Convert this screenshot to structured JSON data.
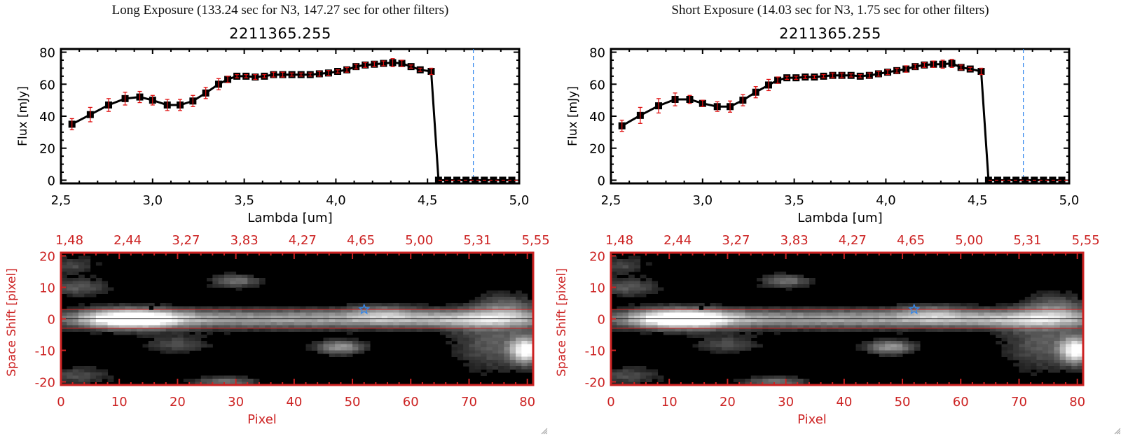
{
  "panels": [
    {
      "exposure_title": "Long Exposure (133.24 sec for N3, 147.27 sec for other filters)",
      "object_id": "2211365.255"
    },
    {
      "exposure_title": "Short Exposure (14.03 sec for N3, 1.75 sec for other filters)",
      "object_id": "2211365.255"
    }
  ],
  "colors": {
    "axis_black": "#000000",
    "error_bar_red": "#e01010",
    "image_axis_red": "#cc2222",
    "marker_line_blue": "#3388ee",
    "star_blue": "#3388ee"
  },
  "chart_data": [
    {
      "type": "line",
      "title": "2211365.255",
      "subtitle": "Long Exposure (133.24 sec for N3, 147.27 sec for other filters)",
      "xlabel": "Lambda [um]",
      "ylabel": "Flux [mJy]",
      "xlim": [
        2.5,
        5.0
      ],
      "ylim": [
        -2,
        82
      ],
      "xticks": [
        2.5,
        3.0,
        3.5,
        4.0,
        4.5,
        5.0
      ],
      "xtick_labels": [
        "2,5",
        "3,0",
        "3,5",
        "4,0",
        "4,5",
        "5,0"
      ],
      "yticks": [
        0,
        20,
        40,
        60,
        80
      ],
      "ytick_labels": [
        "0",
        "20",
        "40",
        "60",
        "80"
      ],
      "vline_x": 4.75,
      "grid": false,
      "series": [
        {
          "name": "flux",
          "x": [
            2.56,
            2.66,
            2.76,
            2.85,
            2.93,
            3.0,
            3.08,
            3.15,
            3.22,
            3.29,
            3.36,
            3.41,
            3.46,
            3.51,
            3.56,
            3.61,
            3.66,
            3.71,
            3.76,
            3.81,
            3.86,
            3.91,
            3.96,
            4.01,
            4.06,
            4.11,
            4.16,
            4.21,
            4.26,
            4.31,
            4.36,
            4.41,
            4.46,
            4.52,
            4.56,
            4.61,
            4.66,
            4.71,
            4.76,
            4.81,
            4.86,
            4.91,
            4.96
          ],
          "y": [
            35,
            41,
            47,
            51,
            52,
            50,
            47,
            47,
            49.5,
            54.5,
            60,
            63,
            65,
            65,
            64.5,
            65,
            66,
            66,
            66,
            66,
            66,
            66.5,
            67,
            68,
            69,
            71,
            72,
            72.5,
            73,
            73.5,
            73,
            71,
            69,
            68,
            0,
            0,
            0,
            0,
            0,
            0,
            0,
            0,
            0
          ],
          "yerr": [
            3.5,
            4.5,
            4,
            4,
            3.5,
            3,
            3.5,
            3.5,
            3.5,
            3.5,
            3.5,
            2,
            1,
            1,
            1.5,
            1,
            1.5,
            1.5,
            1,
            1,
            1,
            1.5,
            1.5,
            1,
            1.5,
            1.5,
            1.5,
            1.5,
            1.5,
            2.5,
            2,
            1,
            1,
            2,
            0,
            0,
            0,
            0,
            0,
            0,
            0,
            0,
            0
          ]
        }
      ]
    },
    {
      "type": "heatmap",
      "title": "",
      "xlabel": "Pixel",
      "ylabel": "Space Shift [pixel]",
      "xlim": [
        0,
        81
      ],
      "ylim": [
        -21,
        21
      ],
      "xticks": [
        0,
        10,
        20,
        30,
        40,
        50,
        60,
        70,
        80
      ],
      "xtick_labels": [
        "0",
        "10",
        "20",
        "30",
        "40",
        "50",
        "60",
        "70",
        "80"
      ],
      "yticks": [
        -20,
        -10,
        0,
        10,
        20
      ],
      "ytick_labels": [
        "-20",
        "-10",
        "0",
        "10",
        "20"
      ],
      "top_xticks": [
        0,
        10,
        20,
        30,
        40,
        50,
        60,
        70,
        80
      ],
      "top_xtick_labels": [
        "1,48",
        "2,44",
        "3,27",
        "3,83",
        "4,27",
        "4,65",
        "5,00",
        "5,31",
        "5,55"
      ],
      "hlines": [
        3,
        0,
        -3
      ],
      "star_marker": {
        "x": 52,
        "y": 3
      },
      "black_marker": {
        "x": 15.5,
        "y": 3.5
      },
      "colormap": "grayscale"
    },
    {
      "type": "line",
      "title": "2211365.255",
      "subtitle": "Short Exposure (14.03 sec for N3, 1.75 sec for other filters)",
      "xlabel": "Lambda [um]",
      "ylabel": "Flux [mJy]",
      "xlim": [
        2.5,
        5.0
      ],
      "ylim": [
        -2,
        82
      ],
      "xticks": [
        2.5,
        3.0,
        3.5,
        4.0,
        4.5,
        5.0
      ],
      "xtick_labels": [
        "2,5",
        "3,0",
        "3,5",
        "4,0",
        "4,5",
        "5,0"
      ],
      "yticks": [
        0,
        20,
        40,
        60,
        80
      ],
      "ytick_labels": [
        "0",
        "20",
        "40",
        "60",
        "80"
      ],
      "vline_x": 4.75,
      "grid": false,
      "series": [
        {
          "name": "flux",
          "x": [
            2.56,
            2.66,
            2.76,
            2.85,
            2.93,
            3.0,
            3.08,
            3.15,
            3.22,
            3.29,
            3.36,
            3.41,
            3.46,
            3.51,
            3.56,
            3.61,
            3.66,
            3.71,
            3.76,
            3.81,
            3.86,
            3.91,
            3.96,
            4.01,
            4.06,
            4.11,
            4.16,
            4.21,
            4.26,
            4.31,
            4.36,
            4.41,
            4.46,
            4.52,
            4.56,
            4.61,
            4.66,
            4.71,
            4.76,
            4.81,
            4.86,
            4.91,
            4.96
          ],
          "y": [
            34,
            40.5,
            46.5,
            50.5,
            50.5,
            48,
            46,
            46,
            50,
            55,
            59.5,
            62.5,
            64,
            64,
            64.5,
            64.5,
            65,
            65.5,
            65.5,
            65.5,
            65,
            65.5,
            66.5,
            67.5,
            68.5,
            69.5,
            71,
            72,
            72.5,
            72.5,
            73,
            70.5,
            69.5,
            68,
            0,
            0,
            0,
            0,
            0,
            0,
            0,
            0,
            0
          ],
          "yerr": [
            3.5,
            5,
            4.5,
            4,
            2.5,
            2,
            3,
            3.5,
            3.5,
            3.5,
            3.5,
            2,
            1,
            1,
            1,
            1,
            1,
            1.5,
            1.5,
            1,
            1,
            1.5,
            1.5,
            1.5,
            1.5,
            2,
            1.5,
            1.5,
            2,
            2.5,
            2.5,
            1.5,
            1,
            2,
            0,
            0,
            0,
            0,
            0,
            0,
            0,
            0,
            0
          ]
        }
      ]
    },
    {
      "type": "heatmap",
      "title": "",
      "xlabel": "Pixel",
      "ylabel": "Space Shift [pixel]",
      "xlim": [
        0,
        81
      ],
      "ylim": [
        -21,
        21
      ],
      "xticks": [
        0,
        10,
        20,
        30,
        40,
        50,
        60,
        70,
        80
      ],
      "xtick_labels": [
        "0",
        "10",
        "20",
        "30",
        "40",
        "50",
        "60",
        "70",
        "80"
      ],
      "yticks": [
        -20,
        -10,
        0,
        10,
        20
      ],
      "ytick_labels": [
        "-20",
        "-10",
        "0",
        "10",
        "20"
      ],
      "top_xticks": [
        0,
        10,
        20,
        30,
        40,
        50,
        60,
        70,
        80
      ],
      "top_xtick_labels": [
        "1,48",
        "2,44",
        "3,27",
        "3,83",
        "4,27",
        "4,65",
        "5,00",
        "5,31",
        "5,55"
      ],
      "hlines": [
        3,
        0,
        -3
      ],
      "star_marker": {
        "x": 52,
        "y": 3
      },
      "black_marker": {
        "x": 15.5,
        "y": 3.5
      },
      "colormap": "grayscale"
    }
  ]
}
